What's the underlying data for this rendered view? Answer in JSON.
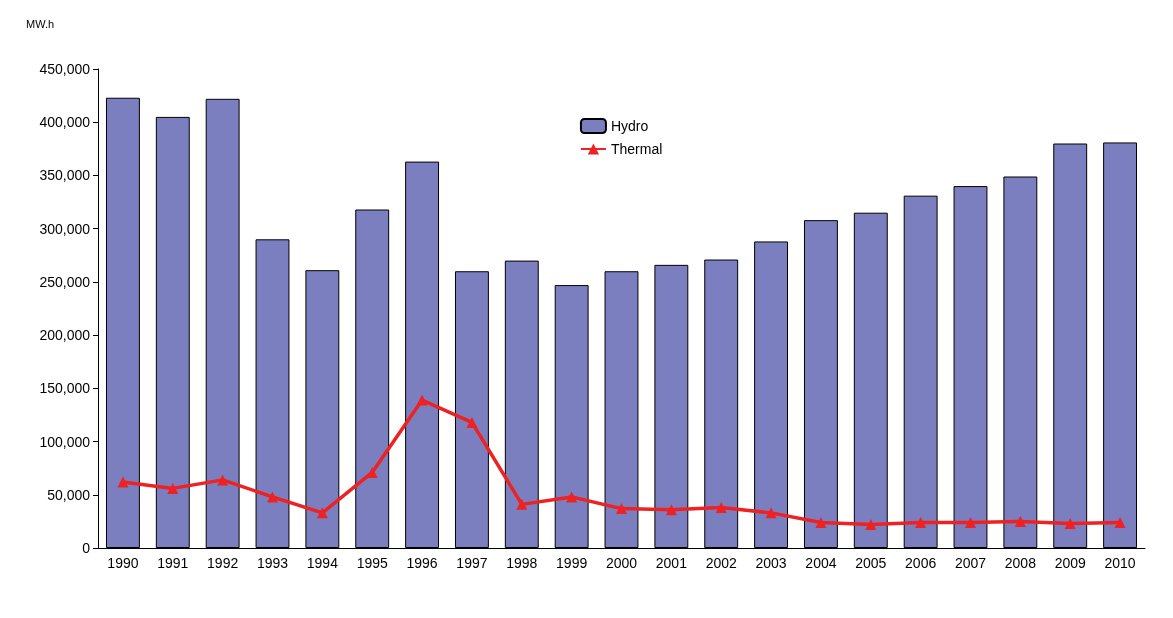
{
  "chart_data": {
    "type": "bar",
    "ylabel": "MW.h",
    "categories": [
      "1990",
      "1991",
      "1992",
      "1993",
      "1994",
      "1995",
      "1996",
      "1997",
      "1998",
      "1999",
      "2000",
      "2001",
      "2002",
      "2003",
      "2004",
      "2005",
      "2006",
      "2007",
      "2008",
      "2009",
      "2010"
    ],
    "series": [
      {
        "name": "Hydro",
        "type": "bar",
        "color": "#7b7fc0",
        "values": [
          423000,
          405000,
          422000,
          290000,
          261000,
          318000,
          363000,
          260000,
          270000,
          247000,
          260000,
          266000,
          271000,
          288000,
          308000,
          315000,
          331000,
          340000,
          349000,
          380000,
          381000
        ]
      },
      {
        "name": "Thermal",
        "type": "line",
        "color": "#ee2222",
        "marker": "triangle",
        "values": [
          62000,
          56000,
          64000,
          48000,
          33000,
          71000,
          139000,
          118000,
          41000,
          48000,
          37000,
          36000,
          38000,
          33000,
          24000,
          22000,
          24000,
          24000,
          25000,
          23000,
          24000
        ]
      }
    ],
    "ylim": [
      0,
      450000
    ],
    "yticks": [
      0,
      {
        "value": 50000,
        "label": "50,000"
      },
      {
        "value": 100000,
        "label": "100,000"
      },
      {
        "value": 150000,
        "label": "150,000"
      },
      {
        "value": 200000,
        "label": "200,000"
      },
      {
        "value": 250000,
        "label": "250,000"
      },
      {
        "value": 300000,
        "label": "300,000"
      },
      {
        "value": 350000,
        "label": "350,000"
      },
      {
        "value": 400000,
        "label": "400,000"
      },
      {
        "value": 450000,
        "label": "450,000"
      }
    ],
    "grid": false,
    "legend": "top"
  }
}
